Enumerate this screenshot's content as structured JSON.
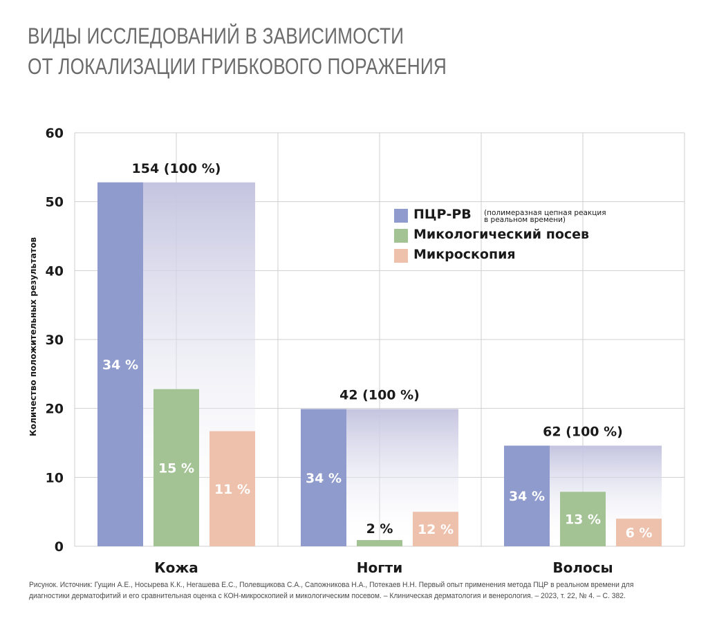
{
  "title": {
    "line1": "ВИДЫ ИССЛЕДОВАНИЙ В ЗАВИСИМОСТИ",
    "line2": "ОТ ЛОКАЛИЗАЦИИ ГРИБКОВОГО ПОРАЖЕНИЯ"
  },
  "source": {
    "line1": "Рисунок. Источник: Гущин А.Е., Носырева К.К., Негашева Е.С., Полевщикова С.А., Сапожникова Н.А., Потекаев Н.Н. Первый опыт применения метода ПЦР в реальном времени для",
    "line2": "диагностики дерматофитий и его сравнительная оценка с КОН-микроскопией и микологическим посевом. – Клиническая дерматология и венерология. – 2023, т. 22, № 4. – С. 382."
  },
  "colors": {
    "pcr": "#8e9bcc",
    "culture": "#a3c395",
    "microscopy": "#eec1ad",
    "total_band": "#c9c9e3",
    "grid": "#cfcfcf"
  },
  "chart_data": {
    "type": "bar",
    "ylabel": "Количество положительных результатов",
    "ylim": [
      0,
      60
    ],
    "yticks": [
      0,
      10,
      20,
      30,
      40,
      50,
      60
    ],
    "grid": true,
    "legend_position": "top-right",
    "categories": [
      "Кожа",
      "Ногти",
      "Волосы"
    ],
    "totals": [
      52.8,
      19.9,
      14.6
    ],
    "total_labels": [
      "154 (100 %)",
      "42 (100 %)",
      "62 (100 %)"
    ],
    "series": [
      {
        "name": "ПЦР-РВ",
        "note_line1": "(полимеразная цепная реакция",
        "note_line2": "в реальном времени)",
        "values": [
          52.8,
          19.9,
          14.6
        ],
        "labels": [
          "34 %",
          "34 %",
          "34 %"
        ]
      },
      {
        "name": "Микологический посев",
        "values": [
          22.8,
          0.9,
          7.9
        ],
        "labels": [
          "15 %",
          "2 %",
          "13 %"
        ]
      },
      {
        "name": "Микроскопия",
        "values": [
          16.7,
          5.0,
          4.0
        ],
        "labels": [
          "11 %",
          "12 %",
          "6 %"
        ]
      }
    ]
  }
}
